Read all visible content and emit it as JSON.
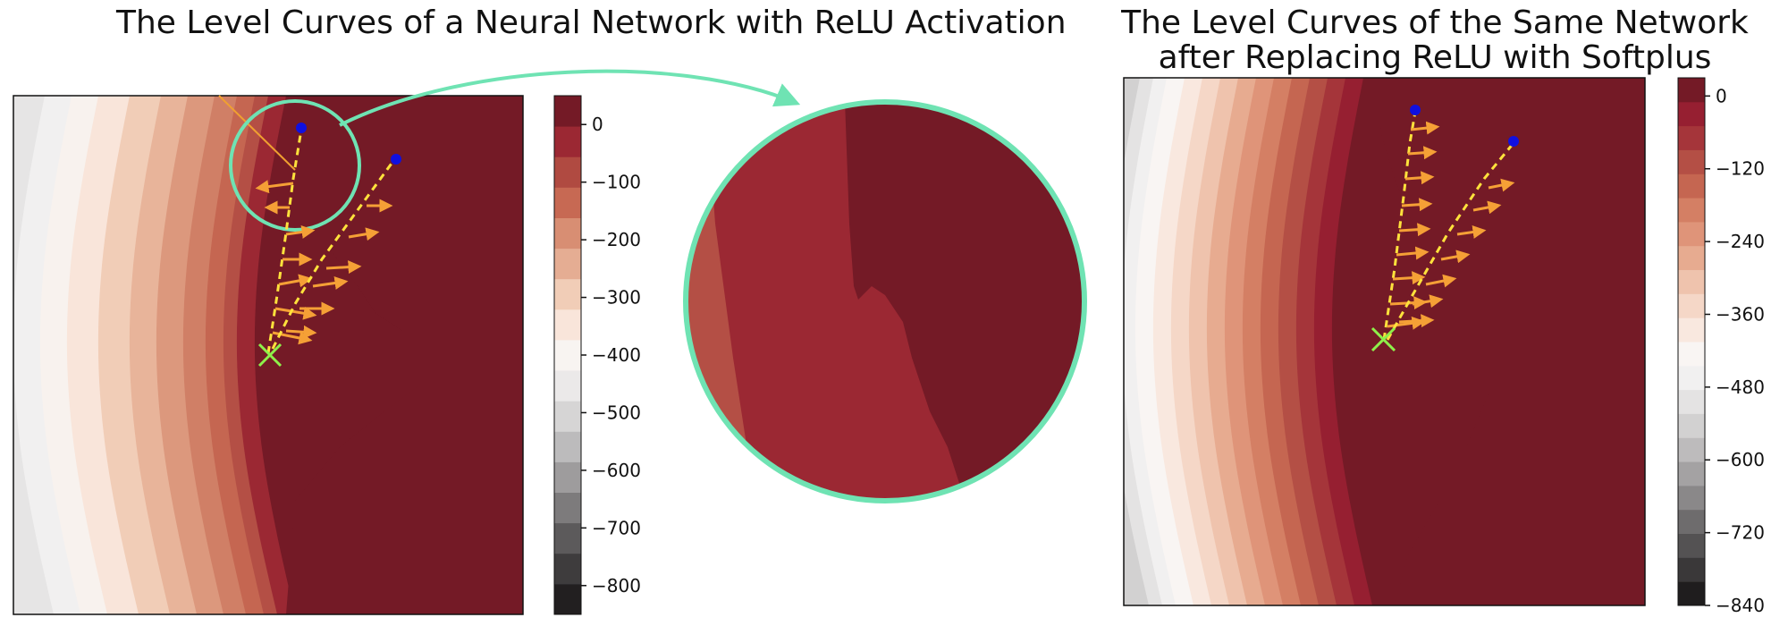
{
  "chart_data": [
    {
      "type": "heatmap",
      "title": "The Level Curves of a Neural Network with ReLU Activation",
      "colorbar": {
        "ticks": [
          "0",
          "−100",
          "−200",
          "−300",
          "−400",
          "−500",
          "−600",
          "−700",
          "−800"
        ],
        "range": [
          -850,
          50
        ],
        "levels": [
          "#221f20",
          "#3e3c3d",
          "#5c5a5b",
          "#7d7b7c",
          "#9e9c9d",
          "#bcbbbc",
          "#d6d5d5",
          "#ebe9e9",
          "#f8f4f1",
          "#f9e5da",
          "#f1cdb7",
          "#e5ad93",
          "#d88e73",
          "#c76953",
          "#b04a41",
          "#9b2833",
          "#741a26"
        ],
        "cmap": "RdGy"
      },
      "annotations": [
        "start point marker (green X)",
        "two end points (blue)",
        "gradient arrows (orange)",
        "zoom circle"
      ]
    },
    {
      "type": "heatmap",
      "title_lines": [
        "The Level Curves of the Same Network",
        "after Replacing ReLU with Softplus"
      ],
      "colorbar": {
        "ticks": [
          "0",
          "−120",
          "−240",
          "−360",
          "−480",
          "−600",
          "−720",
          "−840"
        ],
        "range": [
          -840,
          30
        ],
        "levels": [
          "#1f1d1e",
          "#3a3839",
          "#545253",
          "#6e6c6d",
          "#8a8889",
          "#a4a2a3",
          "#bdbbbc",
          "#d2d1d1",
          "#e4e3e3",
          "#f1f0f0",
          "#f9f5f3",
          "#f9e8df",
          "#f5d7c7",
          "#efc3ad",
          "#e7ab90",
          "#df9479",
          "#d47f64",
          "#c56651",
          "#b44f45",
          "#a5353a",
          "#961f31",
          "#741a26"
        ],
        "cmap": "RdGy"
      }
    }
  ],
  "colors": {
    "zoom_ring": "#6fe3b3",
    "arrow": "#f5a036",
    "path": "#ffe23c",
    "start_marker": "#8ef04a",
    "end_point": "#1010e0",
    "surround_line": "#f0a030"
  }
}
